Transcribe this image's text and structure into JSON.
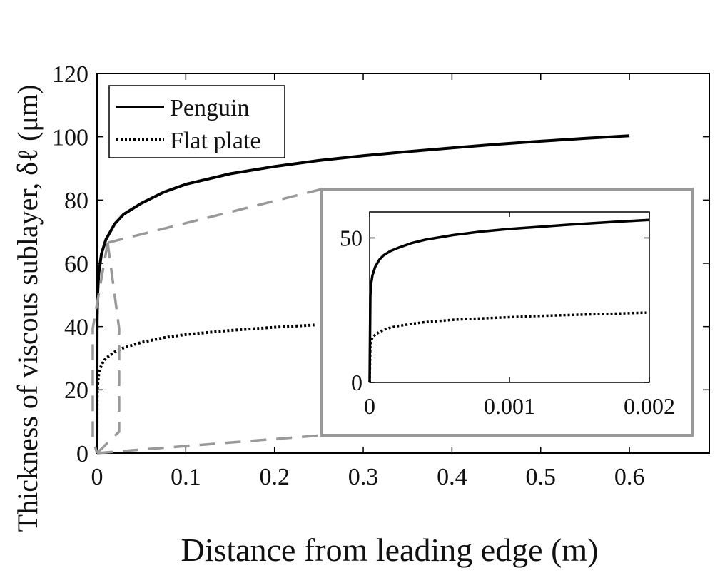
{
  "chart_data": [
    {
      "type": "line",
      "title": "",
      "xlabel": "Distance from leading edge (m)",
      "ylabel": "Thickness of viscous sublayer, δℓ (μm)",
      "xlim": [
        0,
        0.69
      ],
      "ylim": [
        0,
        120
      ],
      "xticks": [
        "0",
        "0.1",
        "0.2",
        "0.3",
        "0.4",
        "0.5",
        "0.6"
      ],
      "yticks": [
        "0",
        "20",
        "40",
        "60",
        "80",
        "100",
        "120"
      ],
      "grid": false,
      "legend_position": "top-left",
      "series": [
        {
          "name": "Penguin",
          "style": "solid",
          "x": [
            0,
            5e-05,
            0.0002,
            0.0005,
            0.001,
            0.002,
            0.005,
            0.01,
            0.02,
            0.03,
            0.05,
            0.075,
            0.1,
            0.15,
            0.2,
            0.25,
            0.3,
            0.35,
            0.4,
            0.45,
            0.5,
            0.55,
            0.6
          ],
          "y": [
            0,
            35.0,
            42.0,
            47.5,
            52.0,
            57.0,
            63.0,
            67.5,
            72.5,
            75.5,
            79.0,
            82.5,
            85.0,
            88.3,
            90.6,
            92.5,
            94.0,
            95.3,
            96.5,
            97.6,
            98.6,
            99.5,
            100.3
          ]
        },
        {
          "name": "Flat plate",
          "style": "dotted",
          "x": [
            0,
            5e-05,
            0.0002,
            0.0005,
            0.001,
            0.002,
            0.005,
            0.01,
            0.02,
            0.03,
            0.05,
            0.075,
            0.1,
            0.15,
            0.2,
            0.245
          ],
          "y": [
            0,
            15.0,
            18.0,
            20.5,
            22.5,
            25.0,
            28.0,
            30.0,
            32.0,
            33.3,
            35.0,
            36.5,
            37.5,
            38.8,
            39.8,
            40.5
          ]
        }
      ]
    },
    {
      "type": "line",
      "title": "",
      "xlabel": "",
      "ylabel": "",
      "xlim": [
        0,
        0.002
      ],
      "ylim": [
        0,
        59
      ],
      "xticks": [
        "0",
        "0.001",
        "0.002"
      ],
      "yticks": [
        "0",
        "50"
      ],
      "grid": false,
      "series": [
        {
          "style": "solid",
          "x": [
            0,
            5e-06,
            1e-05,
            2e-05,
            4e-05,
            7e-05,
            0.0001,
            0.00015,
            0.0002,
            0.0003,
            0.0004,
            0.0006,
            0.0008,
            0.001,
            0.0012,
            0.0014,
            0.0016,
            0.0018,
            0.002
          ],
          "y": [
            0,
            30.0,
            34.0,
            37.0,
            40.0,
            42.5,
            44.0,
            45.5,
            46.5,
            48.2,
            49.4,
            51.0,
            52.2,
            53.1,
            53.8,
            54.5,
            55.1,
            55.7,
            56.2
          ]
        },
        {
          "style": "dotted",
          "x": [
            0,
            5e-06,
            1e-05,
            2e-05,
            4e-05,
            7e-05,
            0.0001,
            0.00015,
            0.0002,
            0.0003,
            0.0004,
            0.0006,
            0.0008,
            0.001,
            0.0012,
            0.0014,
            0.0016,
            0.0018,
            0.002
          ],
          "y": [
            0,
            13.0,
            14.5,
            15.5,
            16.5,
            17.5,
            18.2,
            19.0,
            19.5,
            20.3,
            20.9,
            21.7,
            22.2,
            22.6,
            23.0,
            23.3,
            23.6,
            23.9,
            24.2
          ]
        }
      ]
    }
  ],
  "colors": {
    "axis": "#000000",
    "lines": "#000000",
    "zoom_frame": "#999999"
  }
}
